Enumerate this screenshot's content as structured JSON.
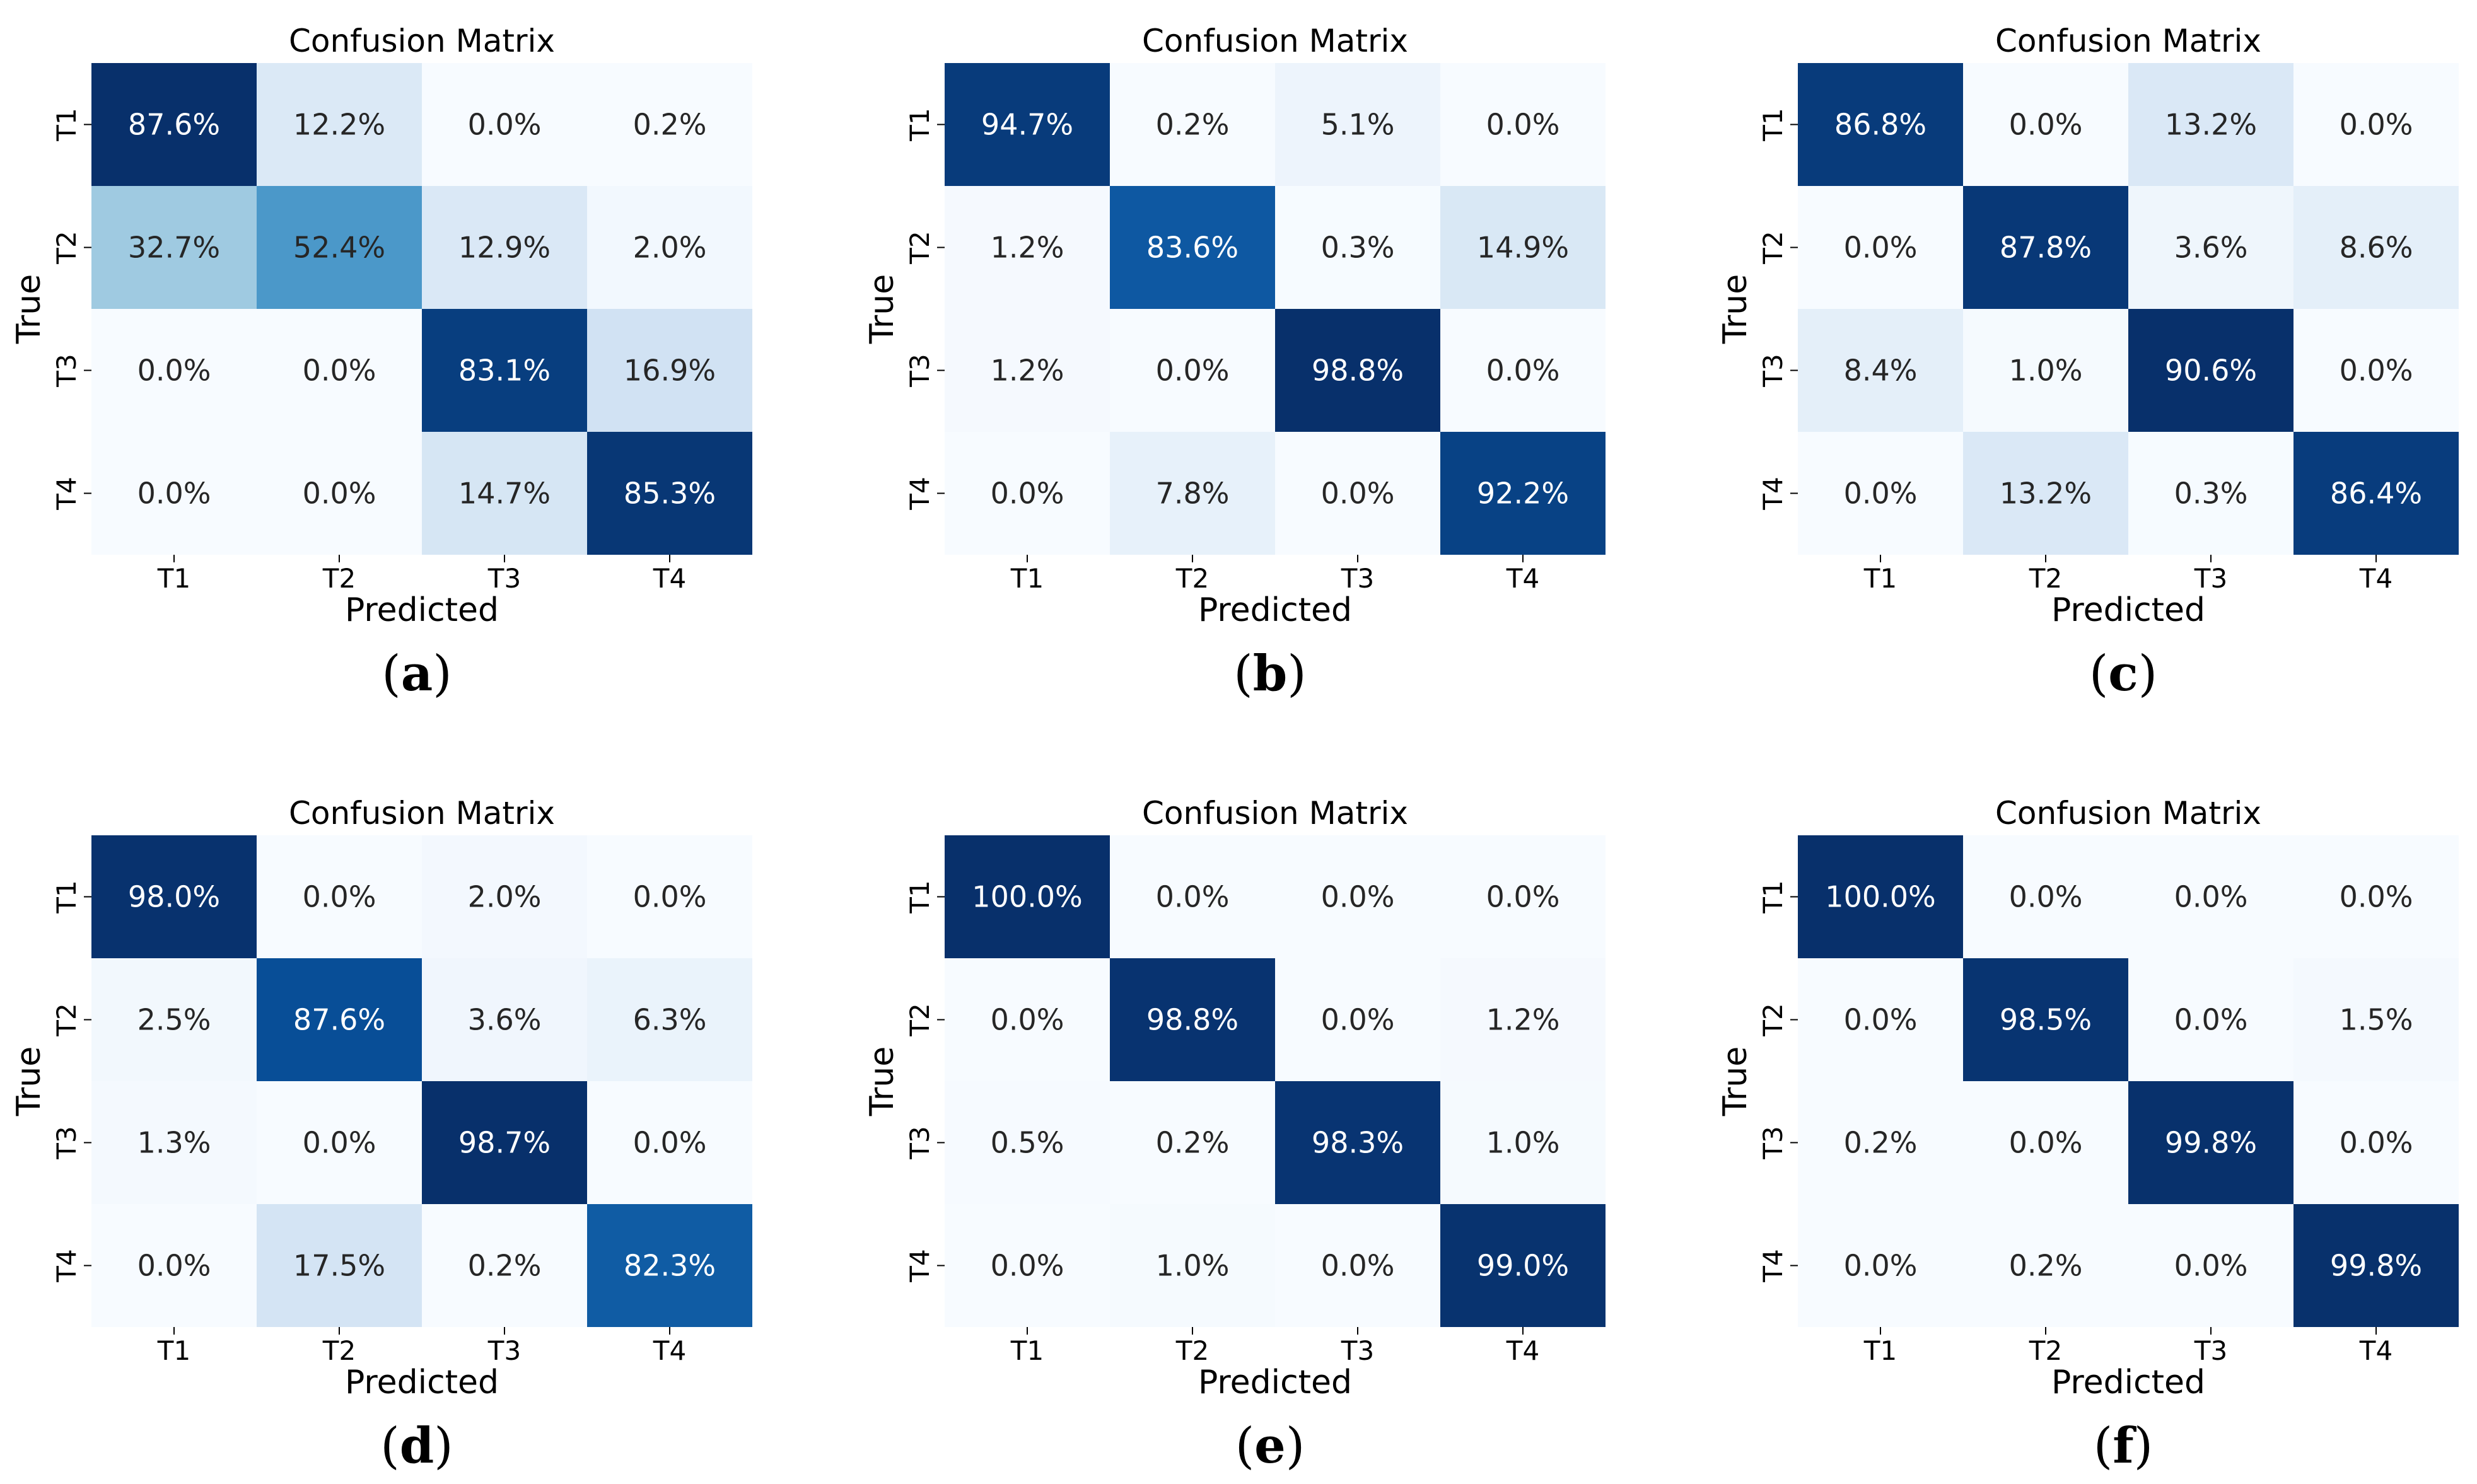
{
  "figure": {
    "panel_title": "Confusion Matrix",
    "x_axis_label": "Predicted",
    "y_axis_label": "True",
    "classes": [
      "T1",
      "T2",
      "T3",
      "T4"
    ]
  },
  "colors": {
    "low": "#f7fbff",
    "scale": [
      "#f7fbff",
      "#deebf7",
      "#c6dbef",
      "#9ecae1",
      "#6baed6",
      "#4292c6",
      "#2171b5",
      "#08519c",
      "#08306b"
    ],
    "text_dark": "#262626",
    "text_light": "#ffffff"
  },
  "chart_data": [
    {
      "type": "heatmap",
      "panel": "a",
      "caption": [
        "(",
        "a",
        ")"
      ],
      "title": "Confusion Matrix",
      "xlabel": "Predicted",
      "ylabel": "True",
      "x_categories": [
        "T1",
        "T2",
        "T3",
        "T4"
      ],
      "y_categories": [
        "T1",
        "T2",
        "T3",
        "T4"
      ],
      "values": [
        [
          87.6,
          12.2,
          0.0,
          0.2
        ],
        [
          32.7,
          52.4,
          12.9,
          2.0
        ],
        [
          0.0,
          0.0,
          83.1,
          16.9
        ],
        [
          0.0,
          0.0,
          14.7,
          85.3
        ]
      ],
      "labels": [
        [
          "87.6%",
          "12.2%",
          "0.0%",
          "0.2%"
        ],
        [
          "32.7%",
          "52.4%",
          "12.9%",
          "2.0%"
        ],
        [
          "0.0%",
          "0.0%",
          "83.1%",
          "16.9%"
        ],
        [
          "0.0%",
          "0.0%",
          "14.7%",
          "85.3%"
        ]
      ]
    },
    {
      "type": "heatmap",
      "panel": "b",
      "caption": [
        "(",
        "b",
        ")"
      ],
      "title": "Confusion Matrix",
      "xlabel": "Predicted",
      "ylabel": "True",
      "x_categories": [
        "T1",
        "T2",
        "T3",
        "T4"
      ],
      "y_categories": [
        "T1",
        "T2",
        "T3",
        "T4"
      ],
      "values": [
        [
          94.7,
          0.2,
          5.1,
          0.0
        ],
        [
          1.2,
          83.6,
          0.3,
          14.9
        ],
        [
          1.2,
          0.0,
          98.8,
          0.0
        ],
        [
          0.0,
          7.8,
          0.0,
          92.2
        ]
      ],
      "labels": [
        [
          "94.7%",
          "0.2%",
          "5.1%",
          "0.0%"
        ],
        [
          "1.2%",
          "83.6%",
          "0.3%",
          "14.9%"
        ],
        [
          "1.2%",
          "0.0%",
          "98.8%",
          "0.0%"
        ],
        [
          "0.0%",
          "7.8%",
          "0.0%",
          "92.2%"
        ]
      ]
    },
    {
      "type": "heatmap",
      "panel": "c",
      "caption": [
        "(",
        "c",
        ")"
      ],
      "title": "Confusion Matrix",
      "xlabel": "Predicted",
      "ylabel": "True",
      "x_categories": [
        "T1",
        "T2",
        "T3",
        "T4"
      ],
      "y_categories": [
        "T1",
        "T2",
        "T3",
        "T4"
      ],
      "values": [
        [
          86.8,
          0.0,
          13.2,
          0.0
        ],
        [
          0.0,
          87.8,
          3.6,
          8.6
        ],
        [
          8.4,
          1.0,
          90.6,
          0.0
        ],
        [
          0.0,
          13.2,
          0.3,
          86.4
        ]
      ],
      "labels": [
        [
          "86.8%",
          "0.0%",
          "13.2%",
          "0.0%"
        ],
        [
          "0.0%",
          "87.8%",
          "3.6%",
          "8.6%"
        ],
        [
          "8.4%",
          "1.0%",
          "90.6%",
          "0.0%"
        ],
        [
          "0.0%",
          "13.2%",
          "0.3%",
          "86.4%"
        ]
      ]
    },
    {
      "type": "heatmap",
      "panel": "d",
      "caption": [
        "(",
        "d",
        ")"
      ],
      "title": "Confusion Matrix",
      "xlabel": "Predicted",
      "ylabel": "True",
      "x_categories": [
        "T1",
        "T2",
        "T3",
        "T4"
      ],
      "y_categories": [
        "T1",
        "T2",
        "T3",
        "T4"
      ],
      "values": [
        [
          98.0,
          0.0,
          2.0,
          0.0
        ],
        [
          2.5,
          87.6,
          3.6,
          6.3
        ],
        [
          1.3,
          0.0,
          98.7,
          0.0
        ],
        [
          0.0,
          17.5,
          0.2,
          82.3
        ]
      ],
      "labels": [
        [
          "98.0%",
          "0.0%",
          "2.0%",
          "0.0%"
        ],
        [
          "2.5%",
          "87.6%",
          "3.6%",
          "6.3%"
        ],
        [
          "1.3%",
          "0.0%",
          "98.7%",
          "0.0%"
        ],
        [
          "0.0%",
          "17.5%",
          "0.2%",
          "82.3%"
        ]
      ]
    },
    {
      "type": "heatmap",
      "panel": "e",
      "caption": [
        "(",
        "e",
        ")"
      ],
      "title": "Confusion Matrix",
      "xlabel": "Predicted",
      "ylabel": "True",
      "x_categories": [
        "T1",
        "T2",
        "T3",
        "T4"
      ],
      "y_categories": [
        "T1",
        "T2",
        "T3",
        "T4"
      ],
      "values": [
        [
          100.0,
          0.0,
          0.0,
          0.0
        ],
        [
          0.0,
          98.8,
          0.0,
          1.2
        ],
        [
          0.5,
          0.2,
          98.3,
          1.0
        ],
        [
          0.0,
          1.0,
          0.0,
          99.0
        ]
      ],
      "labels": [
        [
          "100.0%",
          "0.0%",
          "0.0%",
          "0.0%"
        ],
        [
          "0.0%",
          "98.8%",
          "0.0%",
          "1.2%"
        ],
        [
          "0.5%",
          "0.2%",
          "98.3%",
          "1.0%"
        ],
        [
          "0.0%",
          "1.0%",
          "0.0%",
          "99.0%"
        ]
      ]
    },
    {
      "type": "heatmap",
      "panel": "f",
      "caption": [
        "(",
        "f",
        ")"
      ],
      "title": "Confusion Matrix",
      "xlabel": "Predicted",
      "ylabel": "True",
      "x_categories": [
        "T1",
        "T2",
        "T3",
        "T4"
      ],
      "y_categories": [
        "T1",
        "T2",
        "T3",
        "T4"
      ],
      "values": [
        [
          100.0,
          0.0,
          0.0,
          0.0
        ],
        [
          0.0,
          98.5,
          0.0,
          1.5
        ],
        [
          0.2,
          0.0,
          99.8,
          0.0
        ],
        [
          0.0,
          0.2,
          0.0,
          99.8
        ]
      ],
      "labels": [
        [
          "100.0%",
          "0.0%",
          "0.0%",
          "0.0%"
        ],
        [
          "0.0%",
          "98.5%",
          "0.0%",
          "1.5%"
        ],
        [
          "0.2%",
          "0.0%",
          "99.8%",
          "0.0%"
        ],
        [
          "0.0%",
          "0.2%",
          "0.0%",
          "99.8%"
        ]
      ]
    }
  ]
}
